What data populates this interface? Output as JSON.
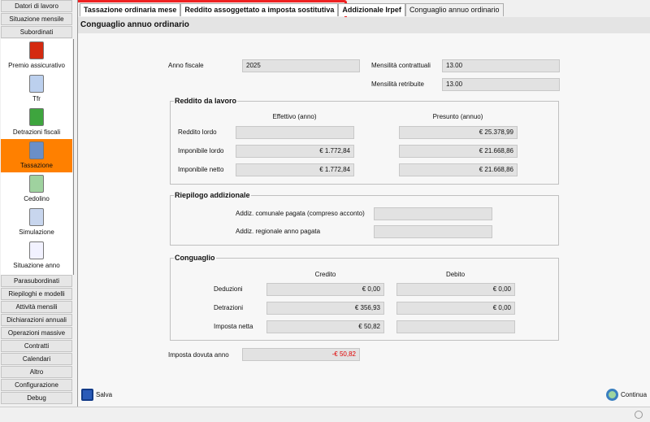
{
  "sidebar": {
    "top_buttons": [
      "Datori di lavoro",
      "Situazione mensile",
      "Subordinati"
    ],
    "items": [
      {
        "label": "Premio assicurativo",
        "icon": "ribbon-icon"
      },
      {
        "label": "Tfr",
        "icon": "document-icon"
      },
      {
        "label": "Detrazioni fiscali",
        "icon": "shield-icon"
      },
      {
        "label": "Tassazione",
        "icon": "calculator-icon",
        "active": true
      },
      {
        "label": "Cedolino",
        "icon": "payslip-icon"
      },
      {
        "label": "Simulazione",
        "icon": "edit-document-icon"
      },
      {
        "label": "Situazione anno",
        "icon": "calendar-icon"
      }
    ],
    "bottom_buttons": [
      "Parasubordinati",
      "Riepiloghi e modelli",
      "Attività mensili",
      "Dichiarazioni annuali",
      "Operazioni massive",
      "Contratti",
      "Calendari",
      "Altro",
      "Configurazione",
      "Debug"
    ]
  },
  "tabs": [
    "Tassazione ordinaria mese",
    "Reddito assoggettato a imposta sostitutiva",
    "Addizionale Irpef",
    "Conguaglio annuo ordinario"
  ],
  "page_title": "Conguaglio annuo ordinario",
  "header": {
    "anno_fiscale_label": "Anno fiscale",
    "anno_fiscale": "2025",
    "mens_contr_label": "Mensilità contrattuali",
    "mens_contr": "13.00",
    "mens_retr_label": "Mensilità retribuite",
    "mens_retr": "13.00"
  },
  "reddito": {
    "title": "Reddito da lavoro",
    "col1": "Effettivo (anno)",
    "col2": "Presunto (annuo)",
    "rows": [
      {
        "label": "Reddito lordo",
        "effettivo": "",
        "presunto": "€ 25.378,99"
      },
      {
        "label": "Imponibile lordo",
        "effettivo": "€ 1.772,84",
        "presunto": "€ 21.668,86"
      },
      {
        "label": "Imponibile netto",
        "effettivo": "€ 1.772,84",
        "presunto": "€ 21.668,86"
      }
    ]
  },
  "addizionale": {
    "title": "Riepilogo addizionale",
    "rows": [
      {
        "label": "Addiz. comunale pagata (compreso acconto)",
        "value": ""
      },
      {
        "label": "Addiz. regionale anno pagata",
        "value": ""
      }
    ]
  },
  "conguaglio": {
    "title": "Conguaglio",
    "col1": "Credito",
    "col2": "Debito",
    "rows": [
      {
        "label": "Deduzioni",
        "credito": "€ 0,00",
        "debito": "€ 0,00"
      },
      {
        "label": "Detrazioni",
        "credito": "€ 356,93",
        "debito": "€ 0,00"
      },
      {
        "label": "Imposta netta",
        "credito": "€ 50,82",
        "debito": ""
      }
    ]
  },
  "imposta": {
    "label": "Imposta dovuta anno",
    "value": "-€ 50,82",
    "color": "#e00000"
  },
  "actions": {
    "save": "Salva",
    "continue": "Continua"
  },
  "highlight_color": "#ee2222"
}
